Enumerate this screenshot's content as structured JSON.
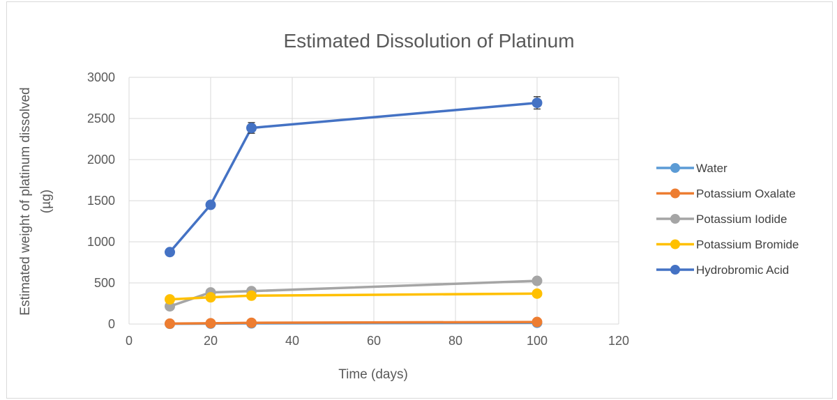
{
  "chart_data": {
    "type": "line",
    "title": "Estimated Dissolution of Platinum",
    "xlabel": "Time (days)",
    "ylabel_line1": "Estimated weight of platinum dissolved",
    "ylabel_line2": "(µg)",
    "xlim": [
      0,
      120
    ],
    "ylim": [
      0,
      3000
    ],
    "xticks": [
      0,
      20,
      40,
      60,
      80,
      100,
      120
    ],
    "yticks": [
      0,
      500,
      1000,
      1500,
      2000,
      2500,
      3000
    ],
    "grid": true,
    "legend_position": "right",
    "x": [
      10,
      20,
      30,
      100
    ],
    "series": [
      {
        "name": "Water",
        "color": "#5B9BD5",
        "values": [
          3,
          5,
          8,
          15
        ],
        "errors": [
          0,
          0,
          0,
          0
        ]
      },
      {
        "name": "Potassium Oxalate",
        "color": "#ED7D31",
        "values": [
          5,
          10,
          15,
          25
        ],
        "errors": [
          0,
          0,
          0,
          0
        ]
      },
      {
        "name": "Potassium Iodide",
        "color": "#A5A5A5",
        "values": [
          215,
          385,
          400,
          525
        ],
        "errors": [
          0,
          0,
          0,
          0
        ]
      },
      {
        "name": "Potassium Bromide",
        "color": "#FFC000",
        "values": [
          300,
          325,
          345,
          370
        ],
        "errors": [
          0,
          0,
          0,
          0
        ]
      },
      {
        "name": "Hydrobromic Acid",
        "color": "#4472C4",
        "values": [
          875,
          1450,
          2385,
          2690
        ],
        "errors": [
          0,
          0,
          65,
          75
        ]
      }
    ]
  }
}
